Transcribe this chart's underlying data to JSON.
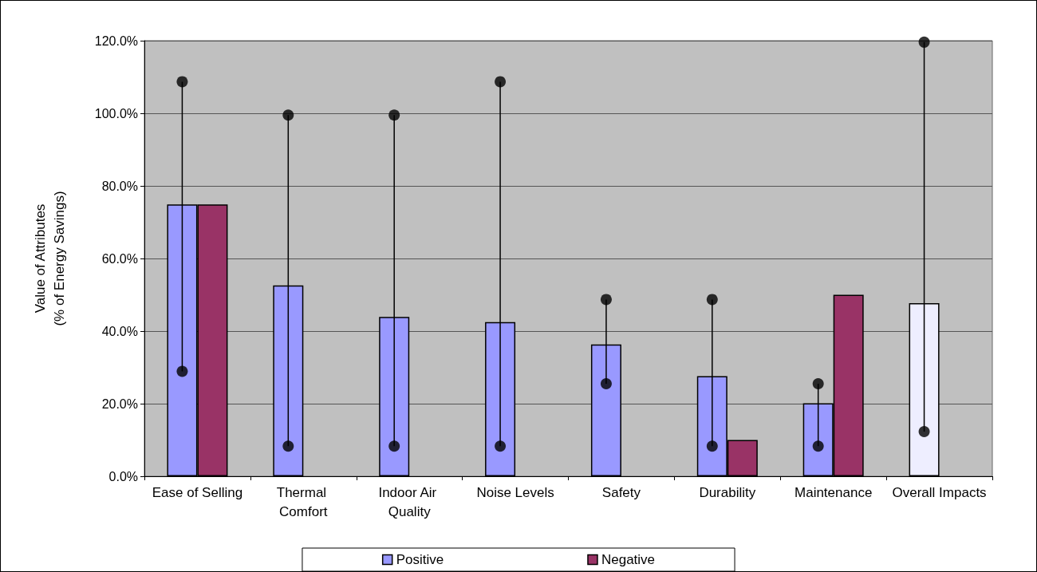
{
  "chart_data": {
    "type": "bar",
    "ylabel": "Value of Attributes\n(% of Energy Savings)",
    "categories": [
      "Ease of Selling",
      "Thermal Comfort",
      "Indoor Air Quality",
      "Noise Levels",
      "Safety",
      "Durability",
      "Maintenance",
      "Overall Impacts"
    ],
    "series": [
      {
        "name": "Positive",
        "color": "#9999ff",
        "colors": [
          "#9999ff",
          "#9999ff",
          "#9999ff",
          "#9999ff",
          "#9999ff",
          "#9999ff",
          "#9999ff",
          "#eeeeff"
        ],
        "values": [
          74.9,
          52.6,
          43.9,
          42.5,
          36.3,
          27.6,
          20.1,
          47.7
        ]
      },
      {
        "type": "scatter",
        "color": "#000000",
        "marker": "circle",
        "x": [
          "Ease of Selling",
          "Thermal Comfort",
          "Indoor Air Quality",
          "Noise Levels",
          "Safety",
          "Durability",
          "Maintenance",
          "Overall Impacts"
        ],
        "values": [
          108.7,
          99.5,
          99.5,
          108.7,
          48.7,
          48.7,
          25.5,
          119.6
        ]
      },
      {
        "type": "scatter",
        "color": "#000000",
        "marker": "circle",
        "x": [
          "Ease of Selling",
          "Thermal Comfort",
          "Indoor Air Quality",
          "Noise Levels",
          "Safety",
          "Durability",
          "Maintenance",
          "Overall Impacts"
        ],
        "values": [
          28.9,
          8.3,
          8.3,
          8.3,
          25.5,
          8.3,
          8.3,
          12.3
        ]
      },
      {
        "name": "Negative",
        "color": "#993366",
        "values": [
          74.9,
          null,
          null,
          null,
          null,
          10.0,
          50.0,
          null
        ]
      }
    ],
    "ylim": [
      0,
      120
    ],
    "yticks": [
      {
        "value": 0,
        "label": "0.0%"
      },
      {
        "value": 20,
        "label": "20.0%"
      },
      {
        "value": 40,
        "label": "40.0%"
      },
      {
        "value": 60,
        "label": "60.0%"
      },
      {
        "value": 80,
        "label": "80.0%"
      },
      {
        "value": 100,
        "label": "100.0%"
      },
      {
        "value": 120,
        "label": "120.0%"
      }
    ],
    "grid": "y",
    "legend": "bottom"
  }
}
